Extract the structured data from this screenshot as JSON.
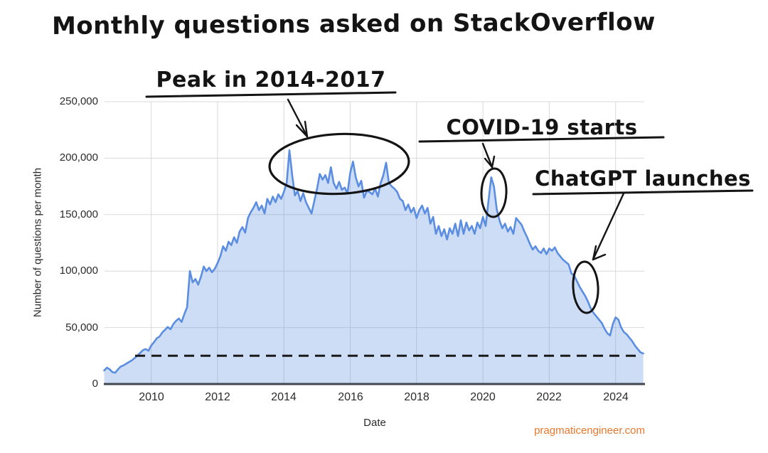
{
  "page": {
    "title": "Monthly questions asked on StackOverflow",
    "watermark": "pragmaticengineer.com",
    "watermark_color": "#E8772E",
    "ink_color": "#141414"
  },
  "chart_data": {
    "type": "area",
    "title": "Monthly questions asked on StackOverflow",
    "xlabel": "Date",
    "ylabel": "Number of questions per month",
    "grid": true,
    "ylim": [
      0,
      250000
    ],
    "y_ticks": [
      0,
      50000,
      100000,
      150000,
      200000,
      250000
    ],
    "y_tick_labels": [
      "0",
      "50,000",
      "100,000",
      "150,000",
      "200,000",
      "250,000"
    ],
    "x_tick_years": [
      2010,
      2012,
      2014,
      2016,
      2018,
      2020,
      2022,
      2024
    ],
    "x_tick_labels": [
      "2010",
      "2012",
      "2014",
      "2016",
      "2018",
      "2020",
      "2022",
      "2024"
    ],
    "x_start": {
      "year": 2008,
      "month": 8
    },
    "x_end": {
      "year": 2024,
      "month": 11
    },
    "series_color": "#5B8DE0",
    "fill_color": "rgba(91,141,224,0.30)",
    "gridline_color": "#d9d9d9",
    "axis_line_color": "#41474F",
    "dashed_reference_value": 25000,
    "values_monthly": [
      12000,
      14500,
      13000,
      10500,
      10000,
      13000,
      15500,
      16500,
      18000,
      19500,
      21000,
      23000,
      25000,
      27500,
      30000,
      31000,
      29500,
      34000,
      37000,
      40500,
      42000,
      45500,
      48000,
      50500,
      48500,
      53000,
      56000,
      58000,
      55000,
      62000,
      68000,
      100000,
      90000,
      93000,
      88000,
      95000,
      104000,
      100000,
      103000,
      99000,
      102000,
      107000,
      113000,
      122000,
      118000,
      126000,
      123000,
      130000,
      125000,
      135000,
      139000,
      134000,
      147000,
      152000,
      156000,
      161000,
      154000,
      158000,
      151000,
      164000,
      159000,
      166000,
      161000,
      168000,
      164000,
      170000,
      178000,
      207000,
      185000,
      167000,
      171000,
      162000,
      169000,
      161000,
      156000,
      151000,
      162000,
      173000,
      186000,
      181000,
      185000,
      178000,
      192000,
      178000,
      173000,
      179000,
      172000,
      174000,
      169000,
      187000,
      197000,
      183000,
      175000,
      180000,
      165000,
      171000,
      170000,
      168000,
      173000,
      166000,
      178000,
      185000,
      196000,
      178000,
      175000,
      173000,
      170000,
      164000,
      162000,
      154000,
      159000,
      152000,
      156000,
      147000,
      154000,
      158000,
      151000,
      156000,
      142000,
      148000,
      133000,
      140000,
      131000,
      137000,
      128000,
      138000,
      133000,
      142000,
      131000,
      145000,
      133000,
      143000,
      136000,
      140000,
      133000,
      143000,
      138000,
      148000,
      140000,
      162000,
      183000,
      175000,
      155000,
      145000,
      138000,
      142000,
      135000,
      139000,
      133000,
      147000,
      144000,
      141000,
      135000,
      130000,
      124000,
      119000,
      122000,
      118000,
      116000,
      120000,
      115000,
      120000,
      118000,
      121000,
      116000,
      113000,
      110000,
      108000,
      106000,
      98000,
      96000,
      91000,
      86000,
      82000,
      78000,
      73000,
      67000,
      63000,
      60000,
      57000,
      54000,
      49000,
      45000,
      43000,
      53000,
      59000,
      57000,
      50000,
      46000,
      44000,
      41000,
      38000,
      34000,
      31000,
      28000,
      27000
    ],
    "annotations": [
      {
        "label": "Peak in 2014-2017"
      },
      {
        "label": "COVID-19 starts"
      },
      {
        "label": "ChatGPT launches"
      }
    ]
  }
}
